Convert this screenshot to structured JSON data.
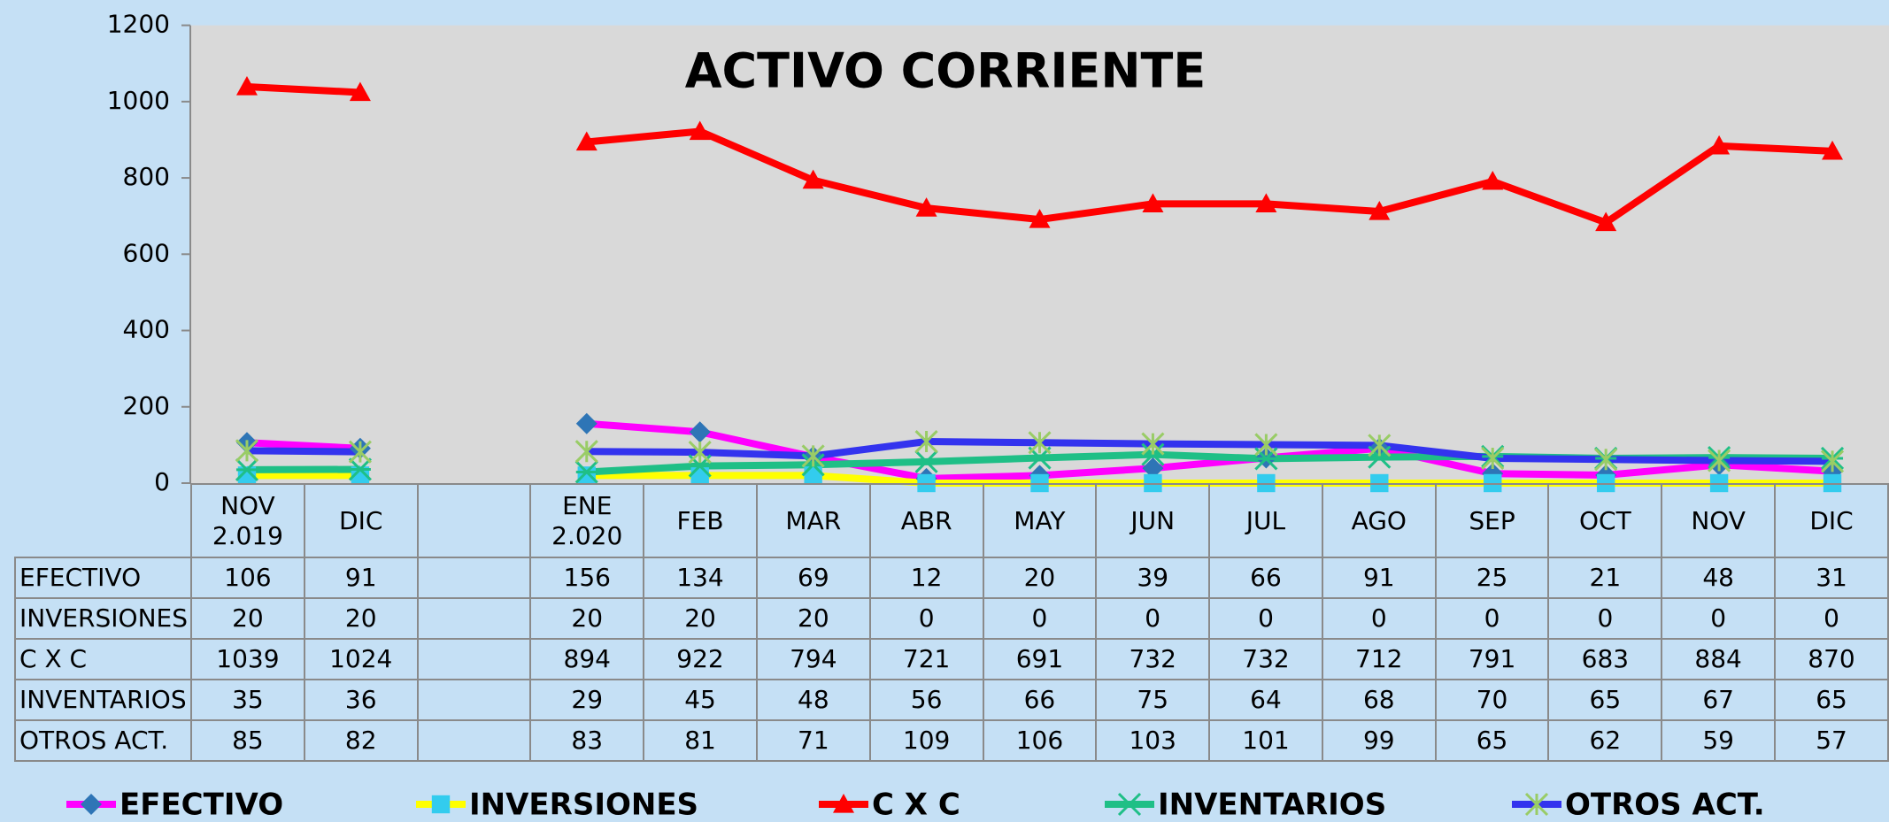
{
  "chart_data": {
    "type": "line",
    "title": "ACTIVO CORRIENTE",
    "categories": [
      "NOV\n2.019",
      "DIC",
      null,
      "ENE\n2.020",
      "FEB",
      "MAR",
      "ABR",
      "MAY",
      "JUN",
      "JUL",
      "AGO",
      "SEP",
      "OCT",
      "NOV",
      "DIC"
    ],
    "series": [
      {
        "name": "EFECTIVO",
        "color": "#ff00ff",
        "marker": "diamond",
        "marker_color": "#2e75b6",
        "values": [
          106,
          91,
          null,
          156,
          134,
          69,
          12,
          20,
          39,
          66,
          91,
          25,
          21,
          48,
          31
        ]
      },
      {
        "name": "INVERSIONES",
        "color": "#ffff00",
        "marker": "square",
        "marker_color": "#33ccee",
        "values": [
          20,
          20,
          null,
          20,
          20,
          20,
          0,
          0,
          0,
          0,
          0,
          0,
          0,
          0,
          0
        ]
      },
      {
        "name": "C X C",
        "color": "#ff0000",
        "marker": "triangle",
        "marker_color": "#ff0000",
        "values": [
          1039,
          1024,
          null,
          894,
          922,
          794,
          721,
          691,
          732,
          732,
          712,
          791,
          683,
          884,
          870
        ]
      },
      {
        "name": "INVENTARIOS",
        "color": "#1fbf86",
        "marker": "star",
        "marker_color": "#1fbf86",
        "values": [
          35,
          36,
          null,
          29,
          45,
          48,
          56,
          66,
          75,
          64,
          68,
          70,
          65,
          67,
          65
        ]
      },
      {
        "name": "OTROS ACT.",
        "color": "#3333ee",
        "marker": "asterisk",
        "marker_color": "#99cc66",
        "values": [
          85,
          82,
          null,
          83,
          81,
          71,
          109,
          106,
          103,
          101,
          99,
          65,
          62,
          59,
          57
        ]
      }
    ],
    "ylim": [
      0,
      1200
    ],
    "yticks": [
      0,
      200,
      400,
      600,
      800,
      1000,
      1200
    ],
    "grid": false,
    "legend": "bottom",
    "data_table": true
  }
}
